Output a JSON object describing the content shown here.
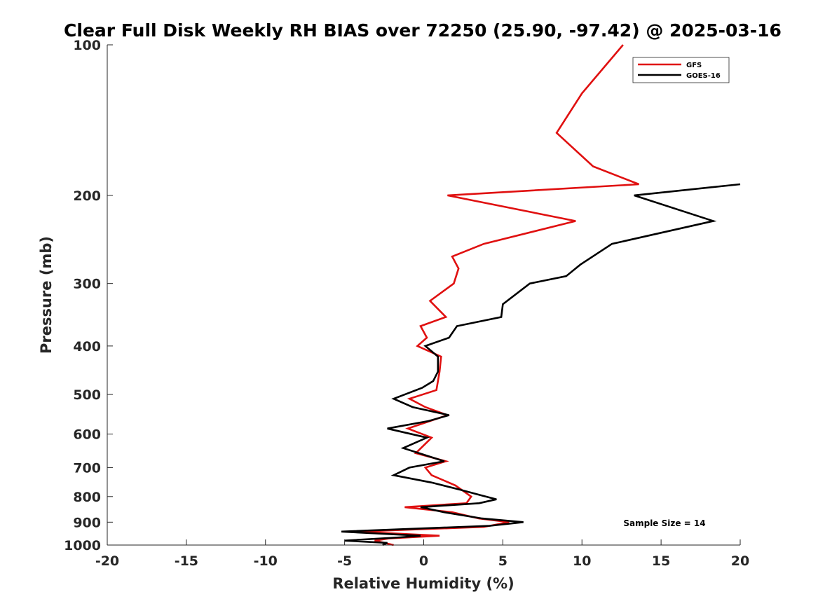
{
  "chart_data": {
    "type": "line",
    "title": "Clear Full Disk Weekly RH BIAS over 72250 (25.90, -97.42) @ 2025-03-16",
    "xlabel": "Relative Humidity (%)",
    "ylabel": "Pressure (mb)",
    "xlim": [
      -20,
      20
    ],
    "ylim": [
      100,
      1000
    ],
    "y_scale": "log",
    "y_reversed": true,
    "x_ticks": [
      -20,
      -15,
      -10,
      -5,
      0,
      5,
      10,
      15,
      20
    ],
    "x_tick_labels": [
      "-20",
      "-15",
      "-10",
      "-5",
      "0",
      "5",
      "10",
      "15",
      "20"
    ],
    "y_ticks": [
      100,
      200,
      300,
      400,
      500,
      600,
      700,
      800,
      900,
      1000
    ],
    "y_tick_labels": [
      "100",
      "200",
      "300",
      "400",
      "500",
      "600",
      "700",
      "800",
      "900",
      "1000"
    ],
    "grid": false,
    "legend_position": "top-right",
    "series": [
      {
        "name": "GFS",
        "color": "#e01010",
        "points": [
          [
            12.6,
            100
          ],
          [
            10.0,
            125
          ],
          [
            8.4,
            150
          ],
          [
            10.7,
            175
          ],
          [
            13.6,
            190
          ],
          [
            1.5,
            200
          ],
          [
            9.6,
            225
          ],
          [
            3.8,
            250
          ],
          [
            1.8,
            265
          ],
          [
            2.2,
            280
          ],
          [
            1.9,
            300
          ],
          [
            0.4,
            325
          ],
          [
            1.4,
            350
          ],
          [
            -0.2,
            365
          ],
          [
            0.2,
            385
          ],
          [
            -0.4,
            400
          ],
          [
            1.1,
            420
          ],
          [
            1.0,
            450
          ],
          [
            0.8,
            490
          ],
          [
            -0.9,
            510
          ],
          [
            0.1,
            530
          ],
          [
            1.5,
            550
          ],
          [
            -1.0,
            585
          ],
          [
            0.5,
            610
          ],
          [
            -0.5,
            655
          ],
          [
            1.4,
            680
          ],
          [
            0.1,
            700
          ],
          [
            0.5,
            725
          ],
          [
            2.0,
            760
          ],
          [
            3.0,
            800
          ],
          [
            2.7,
            825
          ],
          [
            -1.2,
            840
          ],
          [
            1.8,
            860
          ],
          [
            3.5,
            885
          ],
          [
            5.4,
            900
          ],
          [
            3.8,
            920
          ],
          [
            -4.2,
            940
          ],
          [
            1.0,
            958
          ],
          [
            -2.2,
            970
          ],
          [
            -3.1,
            980
          ],
          [
            -1.9,
            1000
          ]
        ]
      },
      {
        "name": "GOES-16",
        "color": "#000000",
        "points": [
          [
            20.0,
            190
          ],
          [
            13.3,
            200
          ],
          [
            18.3,
            225
          ],
          [
            11.9,
            250
          ],
          [
            9.9,
            275
          ],
          [
            9.0,
            290
          ],
          [
            6.7,
            300
          ],
          [
            5.0,
            330
          ],
          [
            4.9,
            350
          ],
          [
            2.1,
            365
          ],
          [
            1.6,
            385
          ],
          [
            0.1,
            400
          ],
          [
            0.9,
            420
          ],
          [
            0.9,
            450
          ],
          [
            0.6,
            470
          ],
          [
            -0.1,
            485
          ],
          [
            -1.9,
            510
          ],
          [
            -0.7,
            530
          ],
          [
            1.6,
            550
          ],
          [
            0.3,
            565
          ],
          [
            -2.3,
            585
          ],
          [
            0.2,
            610
          ],
          [
            -1.3,
            640
          ],
          [
            1.3,
            680
          ],
          [
            -0.9,
            700
          ],
          [
            -1.9,
            725
          ],
          [
            0.5,
            750
          ],
          [
            2.3,
            775
          ],
          [
            3.6,
            795
          ],
          [
            4.6,
            810
          ],
          [
            3.5,
            825
          ],
          [
            -0.2,
            840
          ],
          [
            1.3,
            860
          ],
          [
            3.7,
            885
          ],
          [
            6.3,
            900
          ],
          [
            4.2,
            915
          ],
          [
            -5.2,
            940
          ],
          [
            -0.2,
            958
          ],
          [
            -1.5,
            965
          ],
          [
            -5.0,
            980
          ],
          [
            -2.3,
            990
          ],
          [
            -2.6,
            1000
          ]
        ]
      }
    ],
    "annotation": "Sample Size = 14"
  }
}
